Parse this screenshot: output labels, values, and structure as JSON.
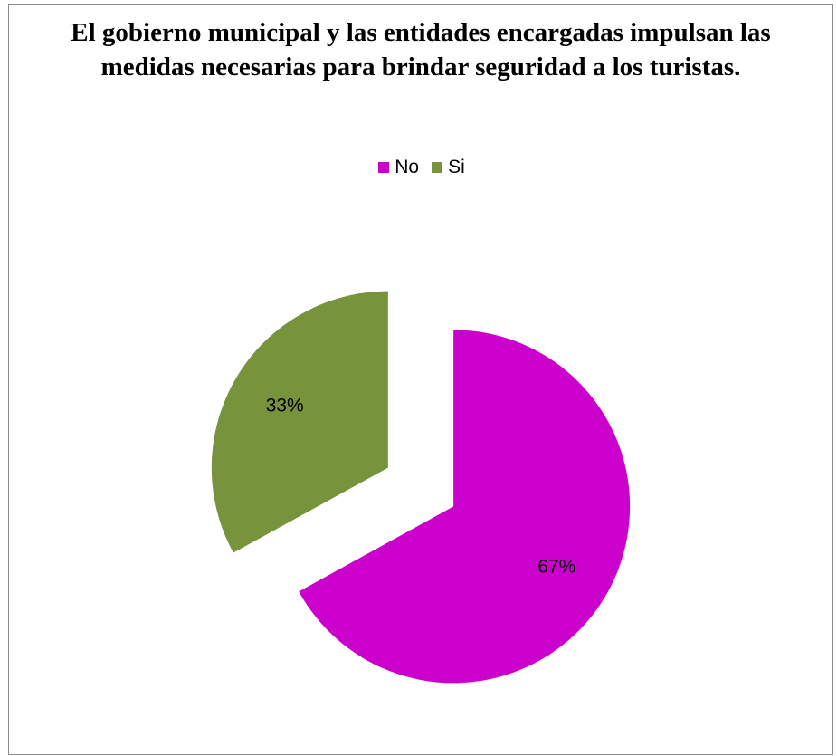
{
  "chart_data": {
    "type": "pie",
    "title": "El gobierno municipal y las entidades encargadas impulsan las medidas necesarias para brindar seguridad a los turistas.",
    "categories": [
      "No",
      "Si"
    ],
    "values": [
      67,
      33
    ],
    "labels": [
      "67%",
      "33%"
    ],
    "colors": [
      "#CC00CC",
      "#77933C"
    ],
    "legend_position": "top",
    "exploded": true
  },
  "legend": {
    "items": [
      {
        "label": "No",
        "color": "#CC00CC"
      },
      {
        "label": "Si",
        "color": "#77933C"
      }
    ]
  }
}
